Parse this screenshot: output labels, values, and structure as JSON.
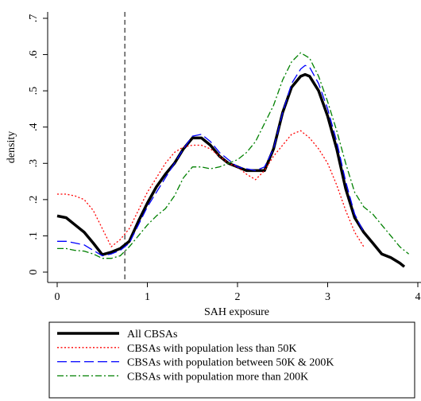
{
  "chart_data": {
    "type": "line",
    "x_label": "SAH exposure",
    "y_label": "density",
    "xlim": [
      0,
      4
    ],
    "xticks": [
      0,
      1,
      2,
      3,
      4
    ],
    "ylim": [
      0,
      0.7
    ],
    "yticks": [
      {
        "value": 0,
        "label": "0"
      },
      {
        "value": 0.1,
        "label": ".1"
      },
      {
        "value": 0.2,
        "label": ".2"
      },
      {
        "value": 0.3,
        "label": ".3"
      },
      {
        "value": 0.4,
        "label": ".4"
      },
      {
        "value": 0.5,
        "label": ".5"
      },
      {
        "value": 0.6,
        "label": ".6"
      },
      {
        "value": 0.7,
        "label": ".7"
      }
    ],
    "vline_x": 0.75,
    "series": [
      {
        "name": "All CBSAs",
        "color": "#000000",
        "line_style": "solid",
        "x": [
          0,
          0.1,
          0.2,
          0.3,
          0.4,
          0.5,
          0.6,
          0.7,
          0.8,
          0.9,
          1.0,
          1.1,
          1.2,
          1.3,
          1.4,
          1.5,
          1.6,
          1.7,
          1.8,
          1.9,
          2.0,
          2.1,
          2.2,
          2.3,
          2.4,
          2.5,
          2.6,
          2.7,
          2.75,
          2.8,
          2.9,
          3.0,
          3.1,
          3.2,
          3.3,
          3.4,
          3.5,
          3.6,
          3.7,
          3.8,
          3.85
        ],
        "values": [
          0.155,
          0.15,
          0.13,
          0.11,
          0.08,
          0.048,
          0.055,
          0.065,
          0.085,
          0.14,
          0.19,
          0.235,
          0.27,
          0.3,
          0.34,
          0.37,
          0.37,
          0.35,
          0.32,
          0.3,
          0.29,
          0.28,
          0.28,
          0.28,
          0.34,
          0.44,
          0.51,
          0.54,
          0.545,
          0.54,
          0.5,
          0.43,
          0.34,
          0.23,
          0.15,
          0.11,
          0.08,
          0.05,
          0.04,
          0.025,
          0.015
        ]
      },
      {
        "name": "CBSAs with population less than 50K",
        "color": "#ff0000",
        "line_style": "dot",
        "x": [
          0,
          0.1,
          0.2,
          0.3,
          0.4,
          0.5,
          0.6,
          0.7,
          0.8,
          0.9,
          1.0,
          1.1,
          1.2,
          1.3,
          1.4,
          1.5,
          1.6,
          1.7,
          1.8,
          1.9,
          2.0,
          2.1,
          2.2,
          2.3,
          2.4,
          2.5,
          2.6,
          2.7,
          2.8,
          2.9,
          3.0,
          3.1,
          3.2,
          3.3,
          3.4
        ],
        "values": [
          0.215,
          0.215,
          0.21,
          0.2,
          0.17,
          0.12,
          0.07,
          0.09,
          0.12,
          0.17,
          0.22,
          0.26,
          0.3,
          0.33,
          0.345,
          0.35,
          0.35,
          0.34,
          0.32,
          0.3,
          0.29,
          0.27,
          0.255,
          0.28,
          0.32,
          0.35,
          0.38,
          0.39,
          0.37,
          0.34,
          0.3,
          0.24,
          0.17,
          0.11,
          0.07
        ]
      },
      {
        "name": "CBSAs with population between 50K & 200K",
        "color": "#0000ff",
        "line_style": "longdash",
        "x": [
          0,
          0.1,
          0.2,
          0.3,
          0.4,
          0.5,
          0.6,
          0.7,
          0.8,
          0.9,
          1.0,
          1.1,
          1.2,
          1.3,
          1.4,
          1.5,
          1.6,
          1.7,
          1.8,
          1.9,
          2.0,
          2.1,
          2.2,
          2.3,
          2.4,
          2.5,
          2.6,
          2.7,
          2.75,
          2.8,
          2.9,
          3.0,
          3.1,
          3.2,
          3.3,
          3.4
        ],
        "values": [
          0.085,
          0.085,
          0.08,
          0.075,
          0.06,
          0.045,
          0.05,
          0.06,
          0.08,
          0.13,
          0.18,
          0.22,
          0.26,
          0.3,
          0.34,
          0.375,
          0.38,
          0.36,
          0.33,
          0.31,
          0.29,
          0.285,
          0.28,
          0.29,
          0.34,
          0.44,
          0.52,
          0.56,
          0.57,
          0.565,
          0.52,
          0.45,
          0.36,
          0.25,
          0.16,
          0.11
        ]
      },
      {
        "name": "CBSAs with population more than 200K",
        "color": "#008000",
        "line_style": "dashdot",
        "x": [
          0,
          0.1,
          0.2,
          0.3,
          0.4,
          0.5,
          0.6,
          0.7,
          0.8,
          0.9,
          1.0,
          1.1,
          1.2,
          1.3,
          1.4,
          1.5,
          1.6,
          1.7,
          1.8,
          1.9,
          2.0,
          2.1,
          2.2,
          2.3,
          2.4,
          2.5,
          2.6,
          2.7,
          2.8,
          2.9,
          3.0,
          3.1,
          3.2,
          3.3,
          3.4,
          3.5,
          3.6,
          3.7,
          3.8,
          3.9
        ],
        "values": [
          0.065,
          0.065,
          0.06,
          0.058,
          0.05,
          0.038,
          0.038,
          0.045,
          0.07,
          0.1,
          0.13,
          0.155,
          0.175,
          0.21,
          0.26,
          0.29,
          0.29,
          0.285,
          0.29,
          0.3,
          0.31,
          0.33,
          0.36,
          0.41,
          0.46,
          0.53,
          0.58,
          0.605,
          0.59,
          0.54,
          0.47,
          0.39,
          0.3,
          0.22,
          0.18,
          0.16,
          0.13,
          0.1,
          0.07,
          0.05
        ]
      }
    ]
  }
}
